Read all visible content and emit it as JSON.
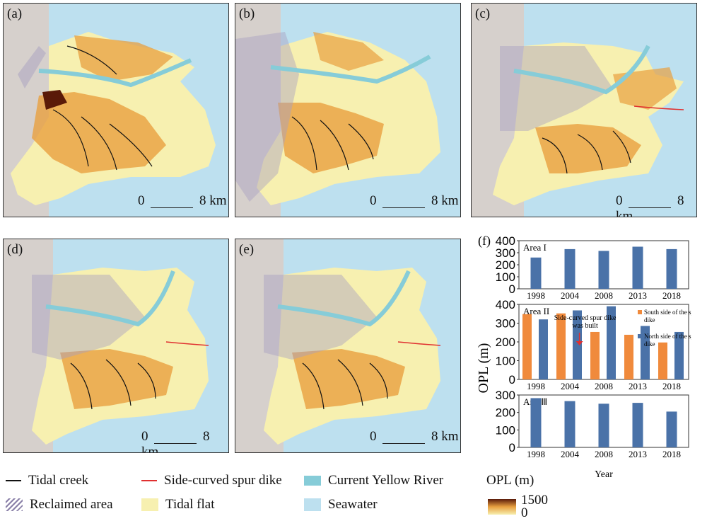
{
  "panels": [
    {
      "id": "a",
      "label": "(a)"
    },
    {
      "id": "b",
      "label": "(b)"
    },
    {
      "id": "c",
      "label": "(c)"
    },
    {
      "id": "d",
      "label": "(d)"
    },
    {
      "id": "e",
      "label": "(e)"
    }
  ],
  "scale": {
    "zero": "0",
    "max": "8 km"
  },
  "legend": {
    "tidal_creek": "Tidal creek",
    "spur_dike": "Side-curved spur dike",
    "current_river": "Current Yellow River",
    "reclaimed": "Reclaimed area",
    "tidal_flat": "Tidal flat",
    "seawater": "Seawater"
  },
  "colors": {
    "seawater": "#bde0ef",
    "land": "#d6d0cc",
    "tidal_flat": "#f7f0b0",
    "river": "#86ccd8",
    "creek": "#111111",
    "spur_dike": "#e03030",
    "bar_blue": "#4a72a8",
    "bar_orange": "#f08a3c",
    "opl_high": "#5a1a08",
    "opl_low": "#f7f0b0"
  },
  "colorbar": {
    "title": "OPL (m)",
    "max": "1500",
    "min": "0"
  },
  "chart_data": {
    "type": "bar",
    "panel_label": "(f)",
    "ylabel": "OPL (m)",
    "xlabel": "Year",
    "categories": [
      "1998",
      "2004",
      "2008",
      "2013",
      "2018"
    ],
    "subplots": [
      {
        "title": "Area I",
        "ylim": [
          0,
          400
        ],
        "yticks": [
          "400",
          "300",
          "200",
          "100",
          "0"
        ],
        "series": [
          {
            "values": [
              260,
              330,
              315,
              350,
              330
            ]
          }
        ]
      },
      {
        "title": "Area II",
        "ylim": [
          0,
          400
        ],
        "yticks": [
          "400",
          "300",
          "200",
          "100",
          "0"
        ],
        "legend": [
          "South side of the spur dike",
          "North side of the spur dike"
        ],
        "annotation": "Side-curved spur dike was built",
        "series": [
          {
            "name": "South side of the spur dike",
            "values": [
              348,
              352,
              253,
              238,
              197
            ]
          },
          {
            "name": "North side of the spur dike",
            "values": [
              320,
              368,
              390,
              285,
              253
            ]
          }
        ]
      },
      {
        "title": "AreaⅢ",
        "ylim": [
          0,
          300
        ],
        "yticks": [
          "300",
          "200",
          "100",
          "0"
        ],
        "series": [
          {
            "values": [
              282,
              265,
              250,
              255,
              205
            ]
          }
        ]
      }
    ]
  }
}
